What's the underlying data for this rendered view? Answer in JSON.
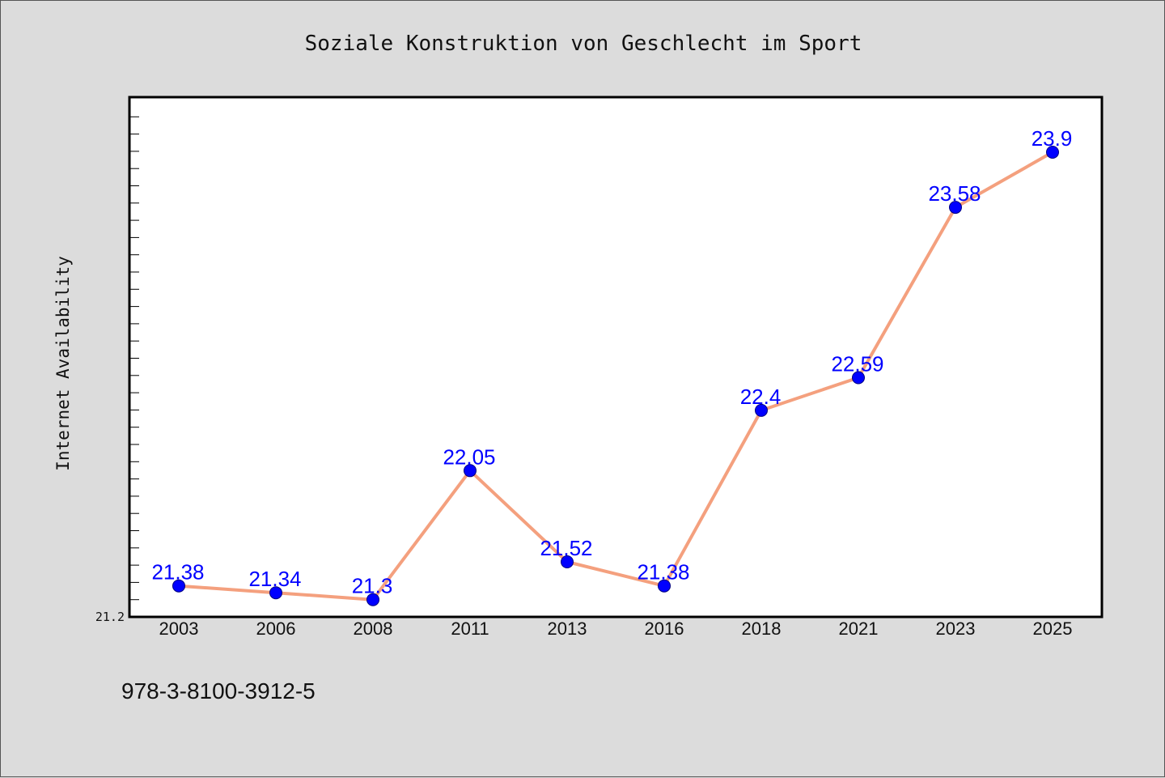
{
  "chart_data": {
    "type": "line",
    "title": "Soziale Konstruktion von Geschlecht im Sport",
    "xlabel": "",
    "ylabel": "Internet Availability",
    "categories": [
      "2003",
      "2006",
      "2008",
      "2011",
      "2013",
      "2016",
      "2018",
      "2021",
      "2023",
      "2025"
    ],
    "series": [
      {
        "values": [
          21.38,
          21.34,
          21.3,
          22.05,
          21.52,
          21.38,
          22.4,
          22.59,
          23.58,
          23.9
        ],
        "labels": [
          "21.38",
          "21.34",
          "21.3",
          "22.05",
          "21.52",
          "21.38",
          "22.4",
          "22.59",
          "23.58",
          "23.9"
        ]
      }
    ],
    "ylim": [
      21.2,
      24.22
    ],
    "yticks": [
      {
        "value": 21.2,
        "label": "21.2"
      }
    ],
    "grid": false,
    "legend": "none",
    "colors": {
      "line": "#f4a07e",
      "marker": "#0000ff",
      "marker_edge": "#000080",
      "data_label": "#0000ff",
      "background": "#dcdcdc",
      "plot_background": "#ffffff"
    }
  },
  "footer": {
    "isbn": "978-3-8100-3912-5"
  }
}
